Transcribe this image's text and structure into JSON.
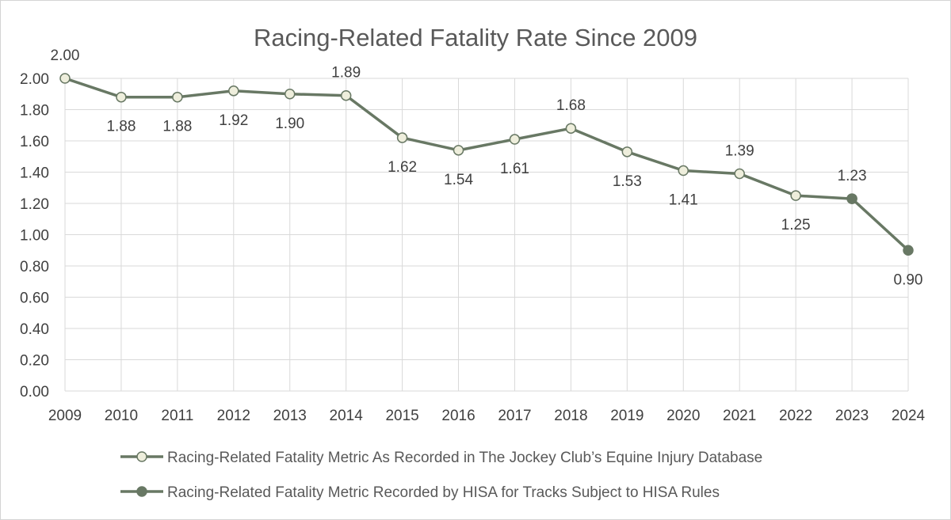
{
  "chart_data": {
    "type": "line",
    "title": "Racing-Related Fatality Rate Since 2009",
    "xlabel": "",
    "ylabel": "",
    "ylim": [
      0,
      2.0
    ],
    "y_tick_step": 0.2,
    "y_tick_labels": [
      "0.00",
      "0.20",
      "0.40",
      "0.60",
      "0.80",
      "1.00",
      "1.20",
      "1.40",
      "1.60",
      "1.80",
      "2.00"
    ],
    "categories": [
      "2009",
      "2010",
      "2011",
      "2012",
      "2013",
      "2014",
      "2015",
      "2016",
      "2017",
      "2018",
      "2019",
      "2020",
      "2021",
      "2022",
      "2023",
      "2024"
    ],
    "grid": true,
    "legend_position": "bottom",
    "series": [
      {
        "name": "Racing-Related Fatality Metric As Recorded in The Jockey Club’s Equine Injury Database",
        "marker": "hollow",
        "color": "#687864",
        "marker_fill": "#eeeedc",
        "values": [
          2.0,
          1.88,
          1.88,
          1.92,
          1.9,
          1.89,
          1.62,
          1.54,
          1.61,
          1.68,
          1.53,
          1.41,
          1.39,
          1.25,
          1.23,
          null
        ],
        "labels": [
          "2.00",
          "1.88",
          "1.88",
          "1.92",
          "1.90",
          "1.89",
          "1.62",
          "1.54",
          "1.61",
          "1.68",
          "1.53",
          "1.41",
          "1.39",
          "1.25",
          "1.23",
          ""
        ],
        "label_pos": [
          "above",
          "below",
          "below",
          "below",
          "below",
          "above",
          "below",
          "below",
          "below",
          "above",
          "below",
          "below",
          "above",
          "below",
          "above",
          ""
        ]
      },
      {
        "name": "Racing-Related Fatality Metric Recorded by HISA for Tracks Subject to HISA Rules",
        "marker": "filled",
        "color": "#687864",
        "marker_fill": "#687864",
        "values": [
          null,
          null,
          null,
          null,
          null,
          null,
          null,
          null,
          null,
          null,
          null,
          null,
          null,
          null,
          1.23,
          0.9
        ],
        "labels": [
          "",
          "",
          "",
          "",
          "",
          "",
          "",
          "",
          "",
          "",
          "",
          "",
          "",
          "",
          "",
          "0.90"
        ],
        "label_pos": [
          "",
          "",
          "",
          "",
          "",
          "",
          "",
          "",
          "",
          "",
          "",
          "",
          "",
          "",
          "",
          "below"
        ]
      }
    ]
  }
}
